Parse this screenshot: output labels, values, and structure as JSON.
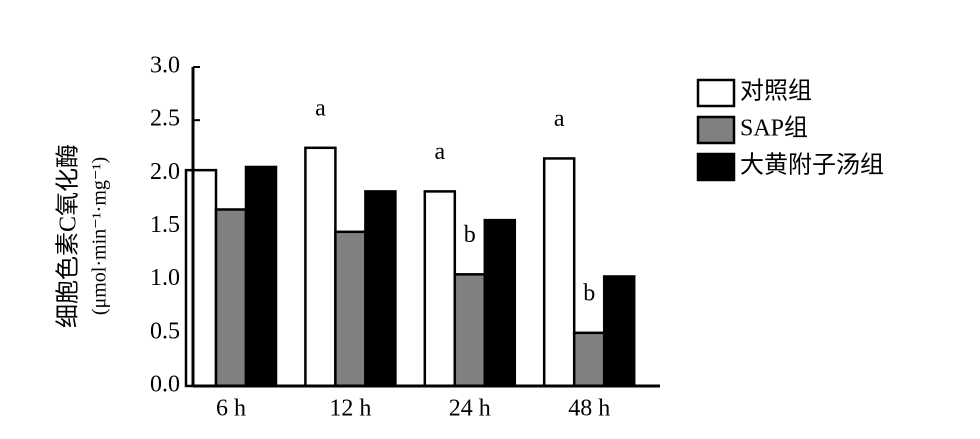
{
  "chart_data": {
    "type": "bar",
    "y_label_lines": [
      "细胞色素C氧化酶",
      "(μmol·min⁻¹·mg⁻¹)"
    ],
    "categories": [
      "6 h",
      "12 h",
      "24 h",
      "48 h"
    ],
    "series": [
      {
        "name": "对照组",
        "color": "#ffffff",
        "values": [
          2.03,
          2.24,
          1.83,
          2.14
        ]
      },
      {
        "name": "SAP组",
        "color": "#808080",
        "values": [
          1.66,
          1.45,
          1.05,
          0.5
        ]
      },
      {
        "name": "大黄附子汤组",
        "color": "#000000",
        "values": [
          2.06,
          1.83,
          1.56,
          1.03
        ]
      }
    ],
    "annotations": [
      {
        "label": "a",
        "category": "12 h",
        "series": "对照组"
      },
      {
        "label": "a",
        "category": "24 h",
        "series": "对照组"
      },
      {
        "label": "b",
        "category": "24 h",
        "series": "SAP组"
      },
      {
        "label": "a",
        "category": "48 h",
        "series": "对照组"
      },
      {
        "label": "b",
        "category": "48 h",
        "series": "SAP组"
      }
    ],
    "ylim": [
      0,
      3.0
    ],
    "yticks": [
      {
        "value": 0,
        "label": "0.0"
      },
      {
        "value": 0.5,
        "label": "0.5"
      },
      {
        "value": 1.0,
        "label": "1.0"
      },
      {
        "value": 1.5,
        "label": "1.5"
      },
      {
        "value": 2.0,
        "label": "2.0"
      },
      {
        "value": 2.5,
        "label": "2.5"
      },
      {
        "value": 3.0,
        "label": "3.0"
      }
    ],
    "legend": "top-right"
  }
}
